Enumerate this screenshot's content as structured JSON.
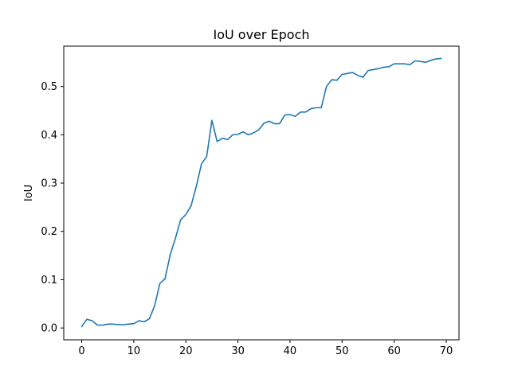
{
  "chart_data": {
    "type": "line",
    "title": "IoU over Epoch",
    "xlabel": "",
    "ylabel": "IoU",
    "xlim": [
      -3.45,
      72.45
    ],
    "ylim": [
      -0.0245,
      0.5835
    ],
    "xticks": [
      0,
      10,
      20,
      30,
      40,
      50,
      60,
      70
    ],
    "yticks": [
      0.0,
      0.1,
      0.2,
      0.3,
      0.4,
      0.5
    ],
    "ytick_labels": [
      "0.0",
      "0.1",
      "0.2",
      "0.3",
      "0.4",
      "0.5"
    ],
    "grid": false,
    "legend": "none",
    "series": [
      {
        "color": "#1f77b4",
        "x": [
          0,
          1,
          2,
          3,
          4,
          5,
          6,
          7,
          8,
          9,
          10,
          11,
          12,
          13,
          14,
          15,
          16,
          17,
          18,
          19,
          20,
          21,
          22,
          23,
          24,
          25,
          26,
          27,
          28,
          29,
          30,
          31,
          32,
          33,
          34,
          35,
          36,
          37,
          38,
          39,
          40,
          41,
          42,
          43,
          44,
          45,
          46,
          47,
          48,
          49,
          50,
          51,
          52,
          53,
          54,
          55,
          56,
          57,
          58,
          59,
          60,
          61,
          62,
          63,
          64,
          65,
          66,
          67,
          68,
          69
        ],
        "values": [
          0.003,
          0.018,
          0.015,
          0.006,
          0.006,
          0.008,
          0.008,
          0.007,
          0.007,
          0.008,
          0.009,
          0.015,
          0.013,
          0.019,
          0.046,
          0.092,
          0.102,
          0.152,
          0.186,
          0.224,
          0.235,
          0.253,
          0.293,
          0.34,
          0.355,
          0.43,
          0.386,
          0.393,
          0.39,
          0.4,
          0.401,
          0.406,
          0.4,
          0.404,
          0.41,
          0.424,
          0.428,
          0.423,
          0.423,
          0.441,
          0.442,
          0.438,
          0.447,
          0.447,
          0.454,
          0.456,
          0.456,
          0.5,
          0.514,
          0.513,
          0.525,
          0.527,
          0.529,
          0.523,
          0.519,
          0.533,
          0.535,
          0.537,
          0.54,
          0.541,
          0.547,
          0.547,
          0.547,
          0.545,
          0.553,
          0.552,
          0.55,
          0.554,
          0.557,
          0.558
        ]
      }
    ]
  }
}
